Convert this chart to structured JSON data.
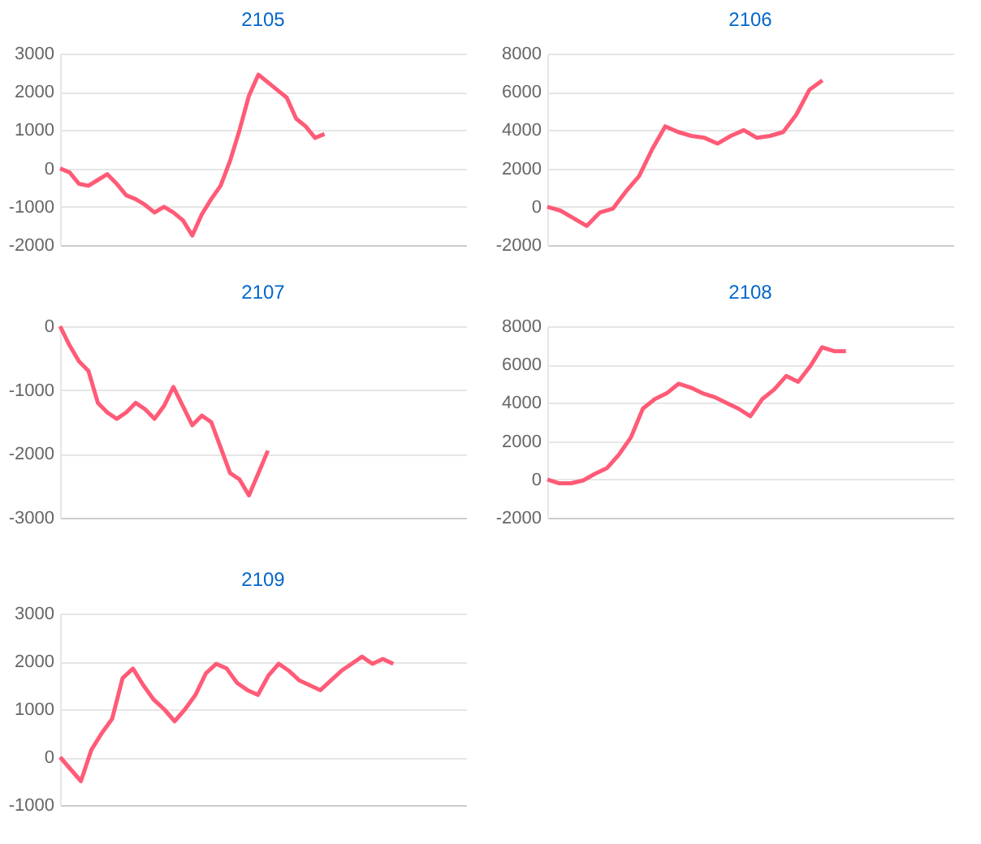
{
  "chart_data": [
    {
      "type": "line",
      "title": "2105",
      "categories": [
        null,
        null,
        null,
        null,
        null,
        null,
        null,
        null,
        null,
        null,
        null,
        null,
        null,
        null,
        null,
        null,
        null,
        null,
        null,
        null,
        null,
        null,
        null,
        null,
        null,
        null,
        null,
        null,
        null,
        null,
        null,
        null,
        null,
        null,
        null,
        null,
        null,
        null,
        null,
        null,
        null,
        null,
        null,
        null
      ],
      "series": [
        {
          "color": "#ff5b77",
          "values": [
            0,
            -100,
            -400,
            -450,
            -300,
            -150,
            -400,
            -700,
            -800,
            -950,
            -1150,
            -1000,
            -1150,
            -1350,
            -1750,
            -1200,
            -800,
            -450,
            200,
            1000,
            1900,
            2450,
            2250,
            2050,
            1850,
            1300,
            1100,
            800,
            900,
            null,
            null,
            null,
            null,
            null,
            null,
            null,
            null,
            null,
            null,
            null,
            null,
            null,
            null,
            null
          ]
        }
      ],
      "ylim": [
        -2000,
        3000
      ],
      "yticks": [
        -2000,
        -1000,
        0,
        1000,
        2000,
        3000
      ],
      "grid": "y",
      "tick_labels": "y"
    },
    {
      "type": "line",
      "title": "2106",
      "categories": [
        null,
        null,
        null,
        null,
        null,
        null,
        null,
        null,
        null,
        null,
        null,
        null,
        null,
        null,
        null,
        null,
        null,
        null,
        null,
        null,
        null,
        null,
        null,
        null,
        null,
        null,
        null,
        null,
        null,
        null,
        null,
        null
      ],
      "series": [
        {
          "color": "#ff5b77",
          "values": [
            0,
            -200,
            -600,
            -1000,
            -300,
            -100,
            800,
            1600,
            3000,
            4200,
            3900,
            3700,
            3600,
            3300,
            3700,
            4000,
            3600,
            3700,
            3900,
            4800,
            6100,
            6600,
            null,
            null,
            null,
            null,
            null,
            null,
            null,
            null,
            null,
            null
          ]
        }
      ],
      "ylim": [
        -2000,
        8000
      ],
      "yticks": [
        -2000,
        0,
        2000,
        4000,
        6000,
        8000
      ],
      "grid": "y",
      "tick_labels": "y"
    },
    {
      "type": "line",
      "title": "2107",
      "categories": [
        null,
        null,
        null,
        null,
        null,
        null,
        null,
        null,
        null,
        null,
        null,
        null,
        null,
        null,
        null,
        null,
        null,
        null,
        null,
        null,
        null,
        null,
        null,
        null,
        null,
        null,
        null,
        null,
        null,
        null,
        null,
        null,
        null,
        null,
        null,
        null,
        null,
        null,
        null,
        null,
        null,
        null,
        null,
        null
      ],
      "series": [
        {
          "color": "#ff5b77",
          "values": [
            0,
            -300,
            -550,
            -700,
            -1200,
            -1350,
            -1450,
            -1350,
            -1200,
            -1300,
            -1450,
            -1250,
            -950,
            -1250,
            -1550,
            -1400,
            -1500,
            -1900,
            -2300,
            -2400,
            -2650,
            -2300,
            -1950,
            null,
            null,
            null,
            null,
            null,
            null,
            null,
            null,
            null,
            null,
            null,
            null,
            null,
            null,
            null,
            null,
            null,
            null,
            null,
            null,
            null
          ]
        }
      ],
      "ylim": [
        -3000,
        0
      ],
      "yticks": [
        -3000,
        -2000,
        -1000,
        0
      ],
      "grid": "y",
      "tick_labels": "y"
    },
    {
      "type": "line",
      "title": "2108",
      "categories": [
        null,
        null,
        null,
        null,
        null,
        null,
        null,
        null,
        null,
        null,
        null,
        null,
        null,
        null,
        null,
        null,
        null,
        null,
        null,
        null,
        null,
        null,
        null,
        null,
        null,
        null,
        null,
        null,
        null,
        null,
        null,
        null,
        null,
        null,
        null
      ],
      "series": [
        {
          "color": "#ff5b77",
          "values": [
            0,
            -200,
            -200,
            -50,
            300,
            600,
            1300,
            2200,
            3700,
            4200,
            4500,
            5000,
            4800,
            4500,
            4300,
            4000,
            3700,
            3300,
            4200,
            4700,
            5400,
            5100,
            5900,
            6900,
            6700,
            6700,
            null,
            null,
            null,
            null,
            null,
            null,
            null,
            null,
            null
          ]
        }
      ],
      "ylim": [
        -2000,
        8000
      ],
      "yticks": [
        -2000,
        0,
        2000,
        4000,
        6000,
        8000
      ],
      "grid": "y",
      "tick_labels": "y"
    },
    {
      "type": "line",
      "title": "2109",
      "categories": [
        null,
        null,
        null,
        null,
        null,
        null,
        null,
        null,
        null,
        null,
        null,
        null,
        null,
        null,
        null,
        null,
        null,
        null,
        null,
        null,
        null,
        null,
        null,
        null,
        null,
        null,
        null,
        null,
        null,
        null,
        null,
        null,
        null,
        null,
        null,
        null,
        null,
        null,
        null,
        null
      ],
      "series": [
        {
          "color": "#ff5b77",
          "values": [
            0,
            -250,
            -500,
            150,
            500,
            800,
            1650,
            1850,
            1500,
            1200,
            1000,
            750,
            1000,
            1300,
            1750,
            1950,
            1850,
            1550,
            1400,
            1300,
            1700,
            1950,
            1800,
            1600,
            1500,
            1400,
            1600,
            1800,
            1950,
            2100,
            1950,
            2050,
            1950,
            null,
            null,
            null,
            null,
            null,
            null,
            null
          ]
        }
      ],
      "ylim": [
        -1000,
        3000
      ],
      "yticks": [
        -1000,
        0,
        1000,
        2000,
        3000
      ],
      "grid": "y",
      "tick_labels": "y"
    }
  ]
}
